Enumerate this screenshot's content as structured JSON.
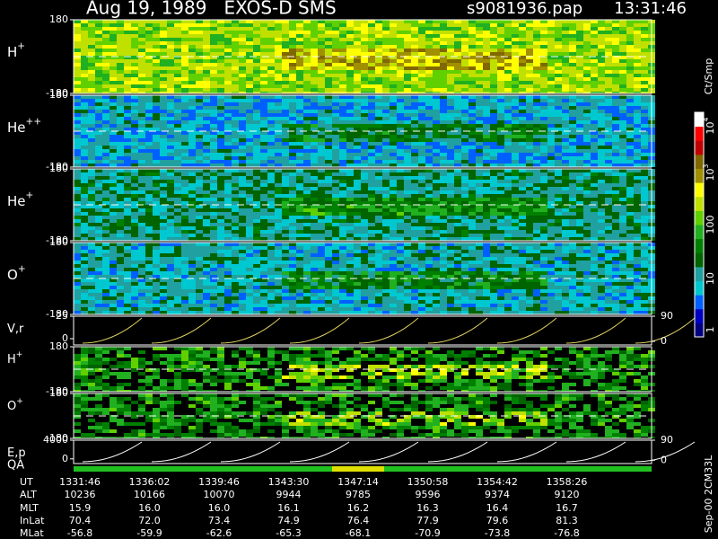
{
  "chart_data": {
    "type": "spectrogram",
    "title": "Aug 19, 1989   EXOS-D SMS",
    "file": "s9081936.pap",
    "time": "13:31:46",
    "panels": [
      {
        "label": {
          "base": "H",
          "sup": "+"
        },
        "ylim": [
          -180,
          180
        ],
        "yticks": [
          180,
          -180
        ]
      },
      {
        "label": {
          "base": "He",
          "sup": "++"
        },
        "ylim": [
          -180,
          180
        ],
        "yticks": [
          180,
          -180
        ]
      },
      {
        "label": {
          "base": "He",
          "sup": "+"
        },
        "ylim": [
          -180,
          180
        ],
        "yticks": [
          180,
          -180
        ]
      },
      {
        "label": {
          "base": "O",
          "sup": "+"
        },
        "ylim": [
          -180,
          180
        ],
        "yticks": [
          180,
          -180
        ]
      },
      {
        "label": {
          "base": "V,r"
        },
        "ylim": [
          -7,
          25
        ],
        "yticks": [
          25,
          0
        ],
        "y2lim": [
          -13,
          90
        ],
        "y2ticks": [
          90,
          0
        ]
      },
      {
        "label": {
          "base": "H",
          "sup": "+"
        },
        "ylim": [
          -180,
          180
        ],
        "yticks": [
          180,
          -180
        ]
      },
      {
        "label": {
          "base": "O",
          "sup": "+"
        },
        "ylim": [
          -180,
          180
        ],
        "yticks": [
          180,
          -180
        ]
      },
      {
        "label": {
          "base": "E,p"
        },
        "ylim": [
          -1000,
          4000
        ],
        "yticks": [
          4000,
          0
        ],
        "y2lim": [
          -15,
          90
        ],
        "y2ticks": [
          90,
          0
        ]
      }
    ],
    "qa_label": "QA",
    "colorbar": {
      "unit": "Ct/Smp",
      "ticks": [
        {
          "base": "10",
          "sup": "4"
        },
        {
          "base": "10",
          "sup": "3"
        },
        {
          "base": "100"
        },
        {
          "base": "10"
        },
        {
          "base": "1"
        }
      ],
      "colors": [
        "#000080",
        "#0000c0",
        "#0060ff",
        "#00c8d0",
        "#20a0a0",
        "#006400",
        "#008000",
        "#20b020",
        "#60d000",
        "#c0e000",
        "#ffff00",
        "#a09000",
        "#806800",
        "#c00000",
        "#ff0000",
        "#ffffff"
      ]
    },
    "footer": "Sep-00 2CM33L",
    "ephemeris": [
      {
        "name": "UT",
        "values": [
          "1331:46",
          "1336:02",
          "1339:46",
          "1343:30",
          "1347:14",
          "1350:58",
          "1354:42",
          "1358:26"
        ]
      },
      {
        "name": "ALT",
        "values": [
          10236,
          10166,
          10070,
          9944,
          9785,
          9596,
          9374,
          9120
        ]
      },
      {
        "name": "MLT",
        "values": [
          15.9,
          16.0,
          16.0,
          16.1,
          16.2,
          16.3,
          16.4,
          16.7
        ],
        "value_labels": [
          "15.9",
          "16.0",
          "16.0",
          "16.1",
          "16.2",
          "16.3",
          "16.4",
          "16.7"
        ]
      },
      {
        "name": "InLat",
        "values": [
          70.4,
          72.0,
          73.4,
          74.9,
          76.4,
          77.9,
          79.6,
          81.3
        ],
        "value_labels": [
          "70.4",
          "72.0",
          "73.4",
          "74.9",
          "76.4",
          "77.9",
          "79.6",
          "81.3"
        ]
      },
      {
        "name": "MLat",
        "values": [
          -56.8,
          -59.9,
          -62.6,
          -65.3,
          -68.1,
          -70.9,
          -73.8,
          -76.8
        ]
      }
    ]
  }
}
